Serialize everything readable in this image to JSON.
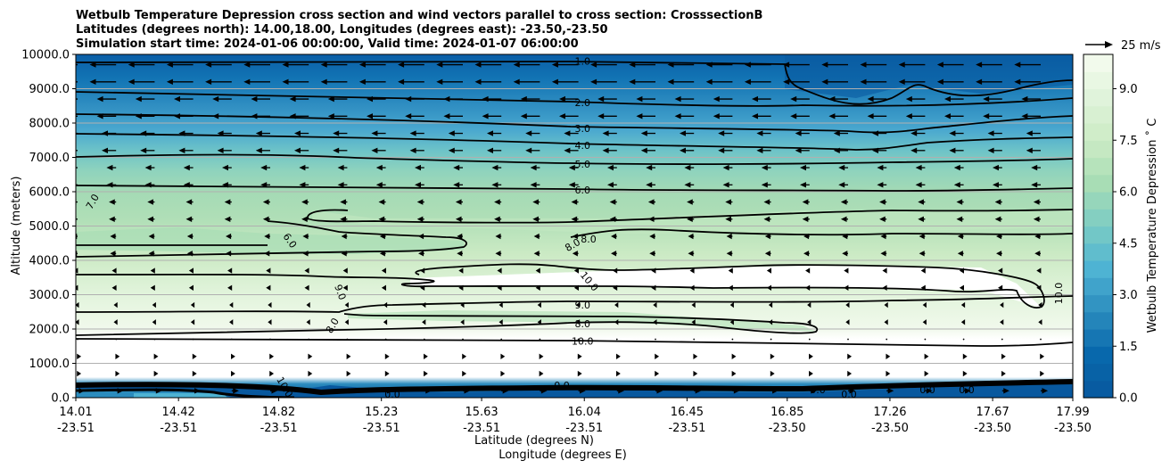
{
  "chart_data": {
    "type": "contour",
    "title_lines": [
      "Wetbulb Temperature Depression cross section and wind vectors parallel to cross section: CrosssectionB",
      "Latitudes (degrees north): 14.00,18.00, Longitudes (degrees east): -23.50,-23.50",
      "Simulation start time: 2024-01-06 00:00:00, Valid time: 2024-01-07 06:00:00"
    ],
    "ylabel": "Altitude (meters)",
    "xlabel_lat": "Latitude (degrees N)",
    "xlabel_lon": "Longitude (degrees E)",
    "ylim": [
      0,
      10000
    ],
    "y_ticks": [
      "0.0",
      "1000.0",
      "2000.0",
      "3000.0",
      "4000.0",
      "5000.0",
      "6000.0",
      "7000.0",
      "8000.0",
      "9000.0",
      "10000.0"
    ],
    "x_ticks": [
      {
        "lat": "14.01",
        "lon": "-23.51"
      },
      {
        "lat": "14.42",
        "lon": "-23.51"
      },
      {
        "lat": "14.82",
        "lon": "-23.51"
      },
      {
        "lat": "15.23",
        "lon": "-23.51"
      },
      {
        "lat": "15.63",
        "lon": "-23.51"
      },
      {
        "lat": "16.04",
        "lon": "-23.51"
      },
      {
        "lat": "16.45",
        "lon": "-23.51"
      },
      {
        "lat": "16.85",
        "lon": "-23.50"
      },
      {
        "lat": "17.26",
        "lon": "-23.50"
      },
      {
        "lat": "17.67",
        "lon": "-23.50"
      },
      {
        "lat": "17.99",
        "lon": "-23.50"
      }
    ],
    "x_range": [
      14.01,
      17.99
    ],
    "grid_y": true,
    "colorbar": {
      "label": "Wetbulb Temperature Depression ˚ C",
      "min": 0,
      "max": 10,
      "ticks": [
        "0.0",
        "1.5",
        "3.0",
        "4.5",
        "6.0",
        "7.5",
        "9.0"
      ],
      "colormap": [
        "#08589e",
        "#0868ac",
        "#2b8cbe",
        "#4eb3d3",
        "#7bccc4",
        "#a8ddb5",
        "#ccebc5",
        "#e0f3db",
        "#f7fcf0"
      ]
    },
    "quiver_key": {
      "label": "25 m/s",
      "speed": 25
    },
    "contour_lines": [
      {
        "label": "1.0",
        "alt": 9800
      },
      {
        "label": "2.0",
        "alt": 8600
      },
      {
        "label": "3.0",
        "alt": 7850
      },
      {
        "label": "4.0",
        "alt": 7350
      },
      {
        "label": "5.0",
        "alt": 6800
      },
      {
        "label": "6.0",
        "alt": 6050
      },
      {
        "label": "8.0",
        "alt": 2150
      },
      {
        "label": "9.0",
        "alt": 2700
      },
      {
        "label": "10.0",
        "alt": 1650
      }
    ],
    "extra_contour_labels": [
      "7.0",
      "6.0",
      "9.0",
      "8.0",
      "8.0",
      "8.0",
      "10.0",
      "10.0",
      "10.0",
      "0.0",
      "0.0",
      "0.0",
      "0.0",
      "0.0",
      "0.0"
    ]
  }
}
